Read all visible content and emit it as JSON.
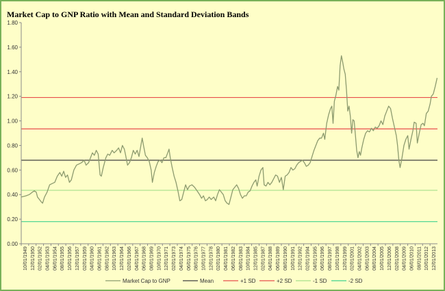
{
  "chart_data": {
    "type": "line",
    "title": "Market Cap to GNP Ratio with  Mean and Standard  Deviation Bands",
    "ylim": [
      0,
      1.8
    ],
    "y_ticks": [
      "0.00",
      "0.20",
      "0.40",
      "0.60",
      "0.80",
      "1.00",
      "1.20",
      "1.40",
      "1.60",
      "1.80"
    ],
    "grid": false,
    "legend_position": "bottom",
    "x_tick_labels": [
      "10/01/1949",
      "12/01/1950",
      "02/01/1952",
      "04/01/1953",
      "06/01/1954",
      "08/01/1955",
      "10/01/1956",
      "12/01/1957",
      "02/01/1959",
      "04/01/1960",
      "06/01/1961",
      "08/01/1962",
      "10/01/1963",
      "12/01/1964",
      "02/01/1966",
      "04/01/1967",
      "06/01/1968",
      "08/01/1969",
      "10/01/1970",
      "12/01/1971",
      "02/01/1973",
      "04/01/1974",
      "06/01/1975",
      "08/01/1976",
      "10/01/1977",
      "12/01/1978",
      "02/01/1980",
      "04/01/1981",
      "06/01/1982",
      "08/01/1983",
      "10/01/1984",
      "12/01/1985",
      "02/01/1987",
      "04/01/1988",
      "06/01/1989",
      "08/01/1990",
      "10/01/1991",
      "12/01/1992",
      "02/01/1994",
      "04/01/1995",
      "06/01/1996",
      "08/01/1997",
      "10/01/1998",
      "12/01/1999",
      "02/01/2001",
      "04/01/2002",
      "06/01/2003",
      "08/01/2004",
      "10/01/2005",
      "12/01/2006",
      "02/01/2008",
      "04/01/2009",
      "06/01/2010",
      "08/01/2011",
      "10/01/2012",
      "12/01/2013"
    ],
    "reference_lines": [
      {
        "name": "Mean",
        "value": 0.68,
        "color": "#404040"
      },
      {
        "name": "+1 SD",
        "value": 0.935,
        "color": "#e84d4d"
      },
      {
        "name": "+2 SD",
        "value": 1.19,
        "color": "#e84d4d"
      },
      {
        "name": "-1 SD",
        "value": 0.435,
        "color": "#a6e08a"
      },
      {
        "name": "-2 SD",
        "value": 0.18,
        "color": "#3ed38f"
      }
    ],
    "series": [
      {
        "name": "Market Cap to GNP",
        "color": "#8c9a6e",
        "points": [
          [
            1949.75,
            0.38
          ],
          [
            1950.5,
            0.39
          ],
          [
            1951.0,
            0.4
          ],
          [
            1951.5,
            0.42
          ],
          [
            1951.8,
            0.43
          ],
          [
            1952.1,
            0.42
          ],
          [
            1952.3,
            0.38
          ],
          [
            1952.6,
            0.36
          ],
          [
            1952.9,
            0.34
          ],
          [
            1953.1,
            0.33
          ],
          [
            1953.4,
            0.38
          ],
          [
            1953.8,
            0.42
          ],
          [
            1954.2,
            0.48
          ],
          [
            1954.6,
            0.49
          ],
          [
            1955.0,
            0.5
          ],
          [
            1955.4,
            0.55
          ],
          [
            1955.8,
            0.58
          ],
          [
            1956.1,
            0.55
          ],
          [
            1956.4,
            0.59
          ],
          [
            1956.7,
            0.54
          ],
          [
            1957.0,
            0.56
          ],
          [
            1957.3,
            0.5
          ],
          [
            1957.6,
            0.52
          ],
          [
            1958.0,
            0.6
          ],
          [
            1958.4,
            0.64
          ],
          [
            1958.8,
            0.65
          ],
          [
            1959.2,
            0.66
          ],
          [
            1959.6,
            0.68
          ],
          [
            1959.9,
            0.64
          ],
          [
            1960.3,
            0.66
          ],
          [
            1960.6,
            0.7
          ],
          [
            1960.9,
            0.74
          ],
          [
            1961.2,
            0.72
          ],
          [
            1961.5,
            0.76
          ],
          [
            1961.8,
            0.73
          ],
          [
            1962.1,
            0.56
          ],
          [
            1962.3,
            0.55
          ],
          [
            1962.6,
            0.62
          ],
          [
            1963.0,
            0.7
          ],
          [
            1963.3,
            0.73
          ],
          [
            1963.6,
            0.72
          ],
          [
            1964.0,
            0.76
          ],
          [
            1964.3,
            0.74
          ],
          [
            1964.7,
            0.76
          ],
          [
            1965.0,
            0.78
          ],
          [
            1965.3,
            0.74
          ],
          [
            1965.6,
            0.8
          ],
          [
            1965.9,
            0.77
          ],
          [
            1966.1,
            0.72
          ],
          [
            1966.4,
            0.64
          ],
          [
            1966.7,
            0.66
          ],
          [
            1967.0,
            0.7
          ],
          [
            1967.3,
            0.76
          ],
          [
            1967.6,
            0.73
          ],
          [
            1967.9,
            0.76
          ],
          [
            1968.2,
            0.71
          ],
          [
            1968.5,
            0.8
          ],
          [
            1968.7,
            0.86
          ],
          [
            1968.9,
            0.8
          ],
          [
            1969.2,
            0.72
          ],
          [
            1969.5,
            0.7
          ],
          [
            1969.8,
            0.67
          ],
          [
            1970.1,
            0.6
          ],
          [
            1970.3,
            0.5
          ],
          [
            1970.6,
            0.58
          ],
          [
            1970.9,
            0.63
          ],
          [
            1971.2,
            0.67
          ],
          [
            1971.5,
            0.68
          ],
          [
            1971.8,
            0.66
          ],
          [
            1972.1,
            0.7
          ],
          [
            1972.4,
            0.7
          ],
          [
            1972.7,
            0.74
          ],
          [
            1972.9,
            0.77
          ],
          [
            1973.1,
            0.7
          ],
          [
            1973.4,
            0.62
          ],
          [
            1973.7,
            0.55
          ],
          [
            1974.0,
            0.5
          ],
          [
            1974.3,
            0.43
          ],
          [
            1974.6,
            0.35
          ],
          [
            1974.9,
            0.36
          ],
          [
            1975.2,
            0.42
          ],
          [
            1975.5,
            0.48
          ],
          [
            1975.8,
            0.44
          ],
          [
            1976.1,
            0.47
          ],
          [
            1976.5,
            0.48
          ],
          [
            1976.9,
            0.46
          ],
          [
            1977.3,
            0.43
          ],
          [
            1977.7,
            0.4
          ],
          [
            1978.0,
            0.37
          ],
          [
            1978.3,
            0.39
          ],
          [
            1978.6,
            0.35
          ],
          [
            1978.9,
            0.36
          ],
          [
            1979.2,
            0.38
          ],
          [
            1979.5,
            0.36
          ],
          [
            1979.9,
            0.38
          ],
          [
            1980.2,
            0.35
          ],
          [
            1980.5,
            0.4
          ],
          [
            1980.8,
            0.44
          ],
          [
            1981.1,
            0.42
          ],
          [
            1981.4,
            0.4
          ],
          [
            1981.7,
            0.35
          ],
          [
            1982.0,
            0.33
          ],
          [
            1982.3,
            0.32
          ],
          [
            1982.6,
            0.38
          ],
          [
            1982.9,
            0.44
          ],
          [
            1983.2,
            0.46
          ],
          [
            1983.5,
            0.48
          ],
          [
            1983.8,
            0.45
          ],
          [
            1984.1,
            0.4
          ],
          [
            1984.4,
            0.37
          ],
          [
            1984.7,
            0.39
          ],
          [
            1985.0,
            0.39
          ],
          [
            1985.3,
            0.42
          ],
          [
            1985.6,
            0.43
          ],
          [
            1985.9,
            0.47
          ],
          [
            1986.2,
            0.5
          ],
          [
            1986.5,
            0.52
          ],
          [
            1986.7,
            0.47
          ],
          [
            1987.0,
            0.55
          ],
          [
            1987.3,
            0.6
          ],
          [
            1987.6,
            0.62
          ],
          [
            1987.8,
            0.48
          ],
          [
            1988.1,
            0.47
          ],
          [
            1988.4,
            0.5
          ],
          [
            1988.7,
            0.48
          ],
          [
            1989.0,
            0.5
          ],
          [
            1989.3,
            0.53
          ],
          [
            1989.6,
            0.56
          ],
          [
            1989.9,
            0.55
          ],
          [
            1990.2,
            0.5
          ],
          [
            1990.5,
            0.54
          ],
          [
            1990.8,
            0.44
          ],
          [
            1991.1,
            0.55
          ],
          [
            1991.4,
            0.56
          ],
          [
            1991.7,
            0.58
          ],
          [
            1992.0,
            0.62
          ],
          [
            1992.3,
            0.6
          ],
          [
            1992.6,
            0.61
          ],
          [
            1992.9,
            0.64
          ],
          [
            1993.2,
            0.66
          ],
          [
            1993.5,
            0.67
          ],
          [
            1993.8,
            0.68
          ],
          [
            1994.1,
            0.66
          ],
          [
            1994.4,
            0.63
          ],
          [
            1994.7,
            0.64
          ],
          [
            1995.0,
            0.66
          ],
          [
            1995.3,
            0.71
          ],
          [
            1995.6,
            0.76
          ],
          [
            1995.9,
            0.8
          ],
          [
            1996.2,
            0.84
          ],
          [
            1996.5,
            0.86
          ],
          [
            1996.8,
            0.86
          ],
          [
            1997.1,
            0.9
          ],
          [
            1997.3,
            0.85
          ],
          [
            1997.6,
            0.98
          ],
          [
            1997.9,
            1.05
          ],
          [
            1998.2,
            1.1
          ],
          [
            1998.4,
            1.12
          ],
          [
            1998.6,
            0.98
          ],
          [
            1998.8,
            1.16
          ],
          [
            1999.0,
            1.2
          ],
          [
            1999.3,
            1.28
          ],
          [
            1999.5,
            1.25
          ],
          [
            1999.7,
            1.45
          ],
          [
            1999.9,
            1.53
          ],
          [
            2000.1,
            1.48
          ],
          [
            2000.3,
            1.42
          ],
          [
            2000.5,
            1.38
          ],
          [
            2000.7,
            1.25
          ],
          [
            2000.9,
            1.08
          ],
          [
            2001.1,
            1.12
          ],
          [
            2001.3,
            1.04
          ],
          [
            2001.5,
            0.9
          ],
          [
            2001.7,
            1.01
          ],
          [
            2001.9,
            1.0
          ],
          [
            2002.1,
            0.88
          ],
          [
            2002.3,
            0.76
          ],
          [
            2002.5,
            0.7
          ],
          [
            2002.7,
            0.75
          ],
          [
            2002.9,
            0.72
          ],
          [
            2003.1,
            0.78
          ],
          [
            2003.4,
            0.85
          ],
          [
            2003.7,
            0.9
          ],
          [
            2004.0,
            0.92
          ],
          [
            2004.3,
            0.91
          ],
          [
            2004.6,
            0.94
          ],
          [
            2004.9,
            0.92
          ],
          [
            2005.2,
            0.95
          ],
          [
            2005.5,
            0.94
          ],
          [
            2005.8,
            0.96
          ],
          [
            2006.1,
            1.0
          ],
          [
            2006.4,
            0.97
          ],
          [
            2006.7,
            1.04
          ],
          [
            2007.0,
            1.08
          ],
          [
            2007.3,
            1.12
          ],
          [
            2007.6,
            1.1
          ],
          [
            2007.9,
            1.02
          ],
          [
            2008.2,
            0.95
          ],
          [
            2008.5,
            0.88
          ],
          [
            2008.7,
            0.8
          ],
          [
            2008.9,
            0.68
          ],
          [
            2009.1,
            0.62
          ],
          [
            2009.4,
            0.7
          ],
          [
            2009.7,
            0.8
          ],
          [
            2010.0,
            0.85
          ],
          [
            2010.3,
            0.88
          ],
          [
            2010.5,
            0.77
          ],
          [
            2010.8,
            0.85
          ],
          [
            2011.1,
            0.92
          ],
          [
            2011.3,
            0.99
          ],
          [
            2011.6,
            0.98
          ],
          [
            2011.8,
            0.82
          ],
          [
            2012.1,
            0.9
          ],
          [
            2012.4,
            0.97
          ],
          [
            2012.7,
            0.98
          ],
          [
            2012.9,
            0.96
          ],
          [
            2013.2,
            1.06
          ],
          [
            2013.5,
            1.08
          ],
          [
            2013.8,
            1.14
          ],
          [
            2014.0,
            1.2
          ],
          [
            2014.3,
            1.22
          ],
          [
            2014.6,
            1.28
          ],
          [
            2014.9,
            1.35
          ]
        ]
      }
    ],
    "legend": [
      {
        "label": "Market Cap to GNP",
        "color": "#8c9a6e"
      },
      {
        "label": "Mean",
        "color": "#404040"
      },
      {
        "label": "+1 SD",
        "color": "#e84d4d"
      },
      {
        "label": "+2 SD",
        "color": "#e84d4d"
      },
      {
        "label": "-1 SD",
        "color": "#a6e08a"
      },
      {
        "label": "-2 SD",
        "color": "#3ed38f"
      }
    ]
  }
}
